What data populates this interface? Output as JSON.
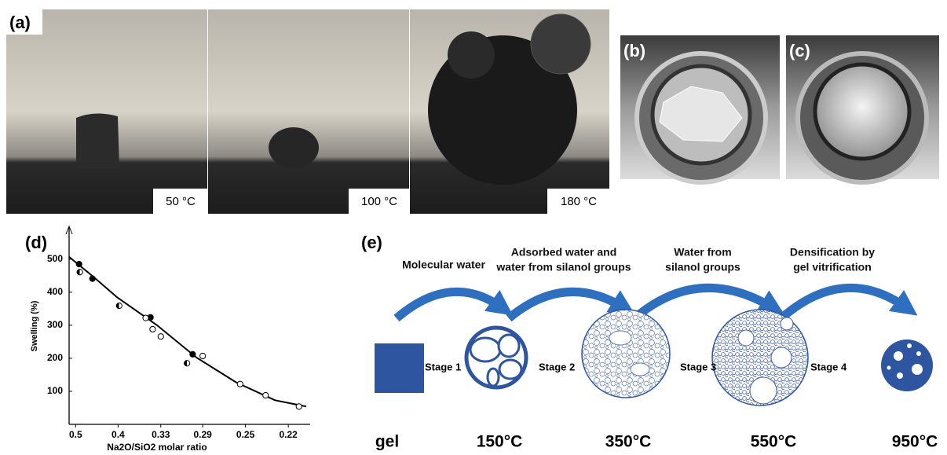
{
  "panels": {
    "a": {
      "label": "(a)",
      "temperatures": [
        "50 °C",
        "100 °C",
        "180 °C"
      ]
    },
    "b": {
      "label": "(b)"
    },
    "c": {
      "label": "(c)"
    },
    "d": {
      "label": "(d)"
    },
    "e": {
      "label": "(e)",
      "processes": [
        [
          "Molecular water"
        ],
        [
          "Adsorbed water and",
          "water from silanol groups"
        ],
        [
          "Water from",
          "silanol groups"
        ],
        [
          "Densification by",
          "gel vitrification"
        ]
      ],
      "stages": [
        "Stage 1",
        "Stage 2",
        "Stage 3",
        "Stage 4"
      ],
      "temperatures": [
        "gel",
        "150°C",
        "350°C",
        "550°C",
        "950°C"
      ]
    }
  },
  "chart_data": {
    "type": "scatter",
    "x_label": "Na2O/SiO2 molar ratio",
    "y_label": "Swelling (%)",
    "xscale": "reciprocal",
    "xlim": [
      0.52,
      0.21
    ],
    "xticks": [
      0.5,
      0.4,
      {
        "value": 0.333,
        "label": "0.33"
      },
      {
        "value": 0.286,
        "label": "0.29"
      },
      0.25,
      {
        "value": 0.222,
        "label": "0.22"
      }
    ],
    "ylim": [
      0,
      590
    ],
    "yticks": [
      100,
      200,
      300,
      400,
      500
    ],
    "color": "#000000",
    "series": [
      {
        "marker": "line",
        "x": [
          0.52,
          0.452,
          0.402,
          0.338,
          0.292,
          0.257,
          0.23,
          0.212
        ],
        "values": [
          507,
          446,
          385,
          300,
          202,
          127,
          73,
          54
        ]
      },
      {
        "marker": "filled",
        "x": [
          0.49,
          0.455,
          0.347,
          0.296
        ],
        "values": [
          485,
          441,
          324,
          212
        ]
      },
      {
        "marker": "half",
        "x": [
          0.488,
          0.398,
          0.302
        ],
        "values": [
          461,
          359,
          185
        ]
      },
      {
        "marker": "open",
        "x": [
          0.354,
          0.344,
          0.333,
          0.286,
          0.254,
          0.236,
          0.216
        ],
        "values": [
          322,
          288,
          266,
          207,
          122,
          88,
          54
        ]
      }
    ]
  }
}
